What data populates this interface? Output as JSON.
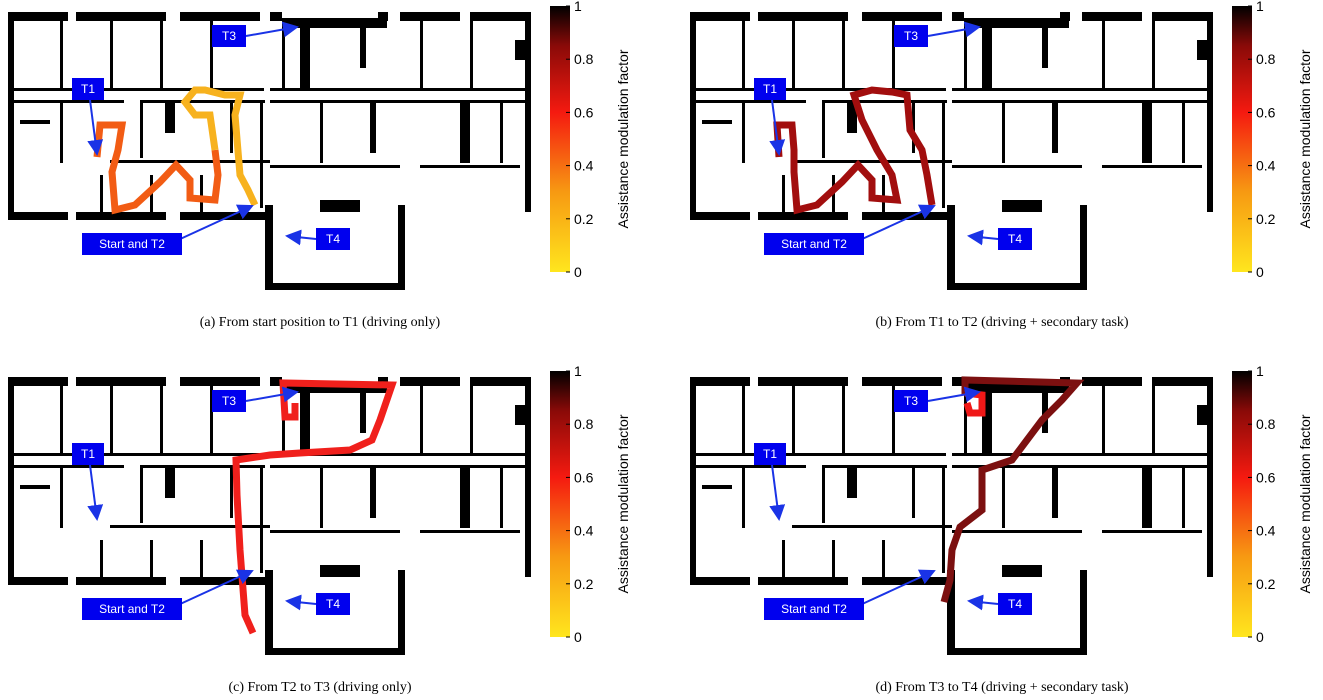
{
  "panels": [
    {
      "caption": "(a) From start position to T1 (driving only)",
      "labels": {
        "t1": "T1",
        "t3": "T3",
        "t4": "T4",
        "start": "Start and T2"
      },
      "colorbar": {
        "label": "Assistance modulation factor",
        "ticks": [
          0,
          0.2,
          0.4,
          0.6,
          0.8,
          1
        ]
      }
    },
    {
      "caption": "(b) From T1 to T2 (driving + secondary task)",
      "labels": {
        "t1": "T1",
        "t3": "T3",
        "t4": "T4",
        "start": "Start and T2"
      },
      "colorbar": {
        "label": "Assistance modulation factor",
        "ticks": [
          0,
          0.2,
          0.4,
          0.6,
          0.8,
          1
        ]
      }
    },
    {
      "caption": "(c) From T2 to T3 (driving only)",
      "labels": {
        "t1": "T1",
        "t3": "T3",
        "t4": "T4",
        "start": "Start and T2"
      },
      "colorbar": {
        "label": "Assistance modulation factor",
        "ticks": [
          0,
          0.2,
          0.4,
          0.6,
          0.8,
          1
        ]
      }
    },
    {
      "caption": "(d) From T3 to T4 (driving + secondary task)",
      "labels": {
        "t1": "T1",
        "t3": "T3",
        "t4": "T4",
        "start": "Start and T2"
      },
      "colorbar": {
        "label": "Assistance modulation factor",
        "ticks": [
          0,
          0.2,
          0.4,
          0.6,
          0.8,
          1
        ]
      }
    }
  ]
}
